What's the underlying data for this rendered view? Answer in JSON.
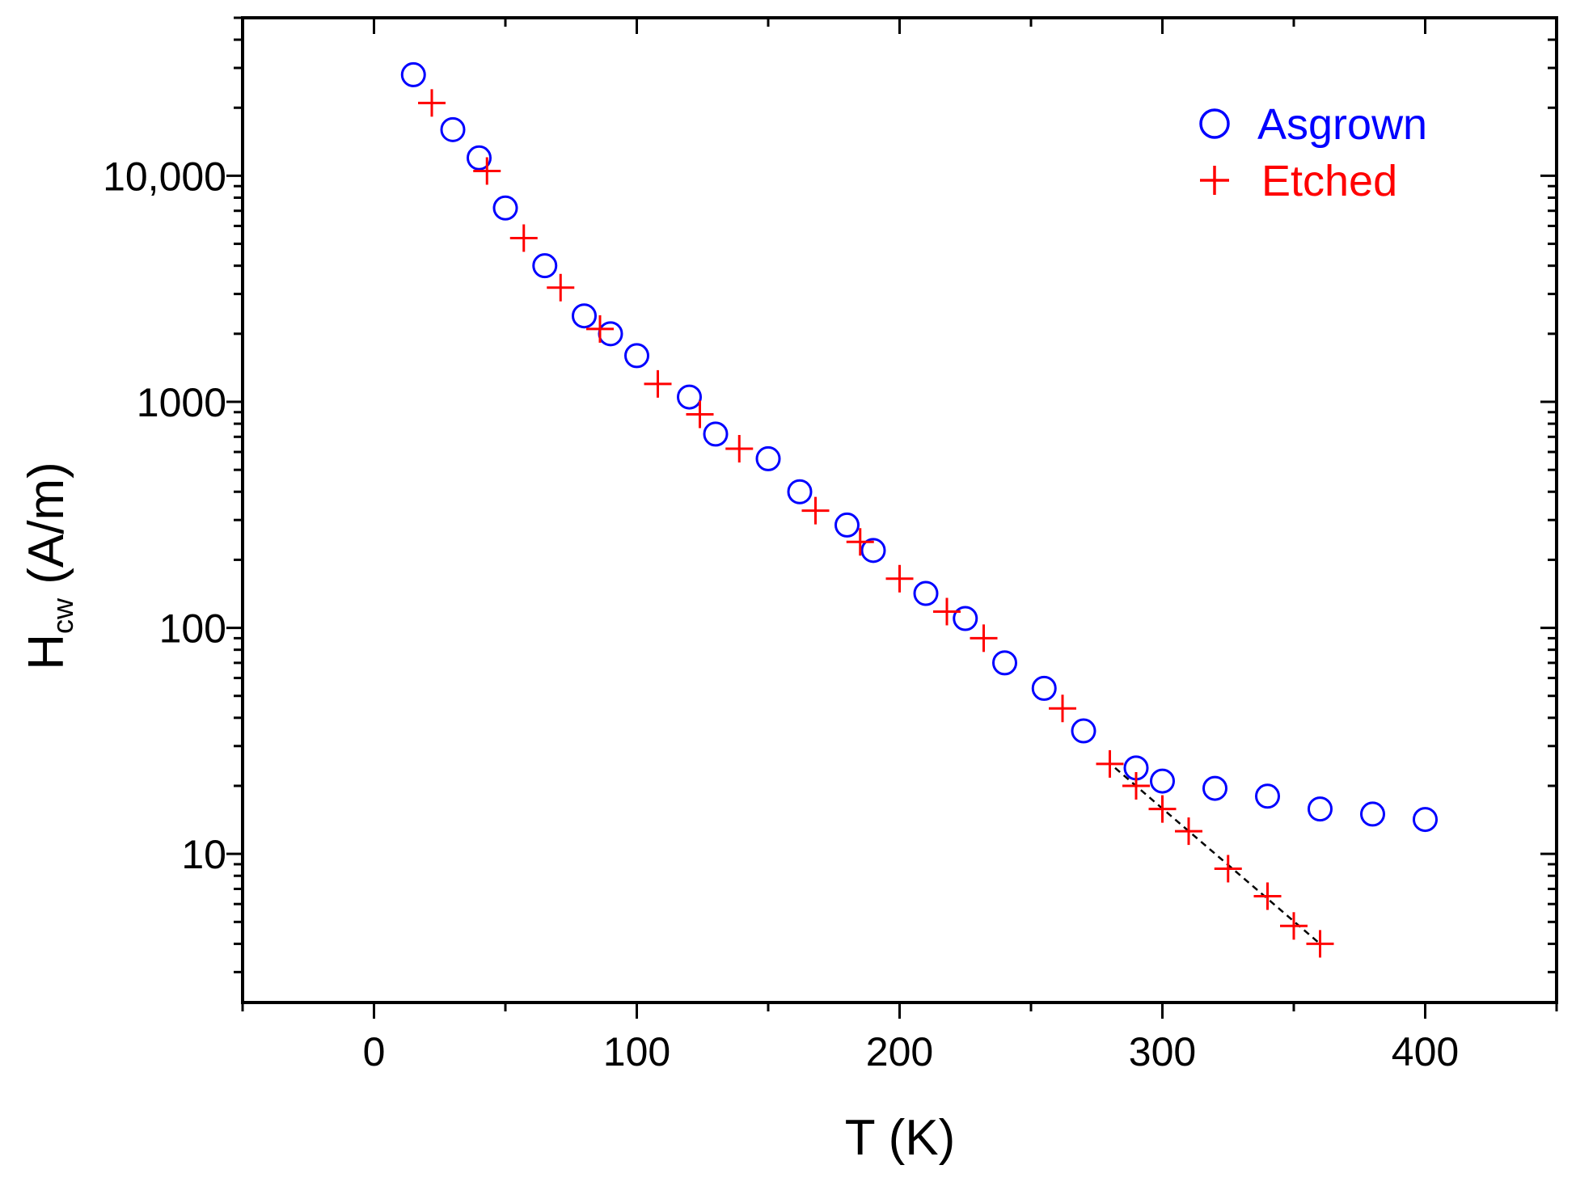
{
  "chart_data": {
    "type": "scatter",
    "title": "",
    "xlabel": "T (K)",
    "ylabel": {
      "main": "H",
      "subscript": "cw",
      "units": " (A/m)"
    },
    "xlim": [
      -50,
      450
    ],
    "ylim": [
      2.2,
      50000
    ],
    "yscale": "log",
    "x_ticks": [
      0,
      100,
      200,
      300,
      400
    ],
    "x_tick_labels": [
      "0",
      "100",
      "200",
      "300",
      "400"
    ],
    "y_ticks": [
      10,
      100,
      1000,
      10000
    ],
    "y_tick_labels": [
      "10",
      "100",
      "1000",
      "10,000"
    ],
    "legend_position": "top-right",
    "series": [
      {
        "name": "Asgrown",
        "marker": "circle",
        "color": "#0000ff",
        "points": [
          [
            15,
            28000
          ],
          [
            30,
            16000
          ],
          [
            40,
            12000
          ],
          [
            50,
            7200
          ],
          [
            65,
            4000
          ],
          [
            80,
            2400
          ],
          [
            90,
            2000
          ],
          [
            100,
            1600
          ],
          [
            120,
            1050
          ],
          [
            130,
            720
          ],
          [
            150,
            560
          ],
          [
            162,
            400
          ],
          [
            180,
            285
          ],
          [
            190,
            220
          ],
          [
            210,
            142
          ],
          [
            225,
            110
          ],
          [
            240,
            70
          ],
          [
            255,
            54
          ],
          [
            270,
            35
          ],
          [
            290,
            24
          ],
          [
            300,
            21
          ],
          [
            320,
            19.5
          ],
          [
            340,
            18
          ],
          [
            360,
            15.8
          ],
          [
            380,
            15
          ],
          [
            400,
            14.2
          ]
        ]
      },
      {
        "name": "Etched",
        "marker": "plus",
        "color": "#ff0000",
        "points": [
          [
            22,
            21000
          ],
          [
            43,
            10500
          ],
          [
            57,
            5300
          ],
          [
            71,
            3200
          ],
          [
            86,
            2100
          ],
          [
            108,
            1200
          ],
          [
            124,
            880
          ],
          [
            139,
            620
          ],
          [
            168,
            330
          ],
          [
            185,
            240
          ],
          [
            200,
            165
          ],
          [
            218,
            118
          ],
          [
            232,
            90
          ],
          [
            262,
            44
          ],
          [
            280,
            25
          ],
          [
            290,
            20
          ],
          [
            300,
            15.8
          ],
          [
            310,
            12.6
          ],
          [
            325,
            8.6
          ],
          [
            340,
            6.5
          ],
          [
            350,
            4.8
          ],
          [
            360,
            4
          ]
        ]
      }
    ],
    "fit_line": {
      "style": "dashed",
      "color": "#000000",
      "points": [
        [
          282,
          24
        ],
        [
          360,
          4
        ]
      ]
    }
  }
}
